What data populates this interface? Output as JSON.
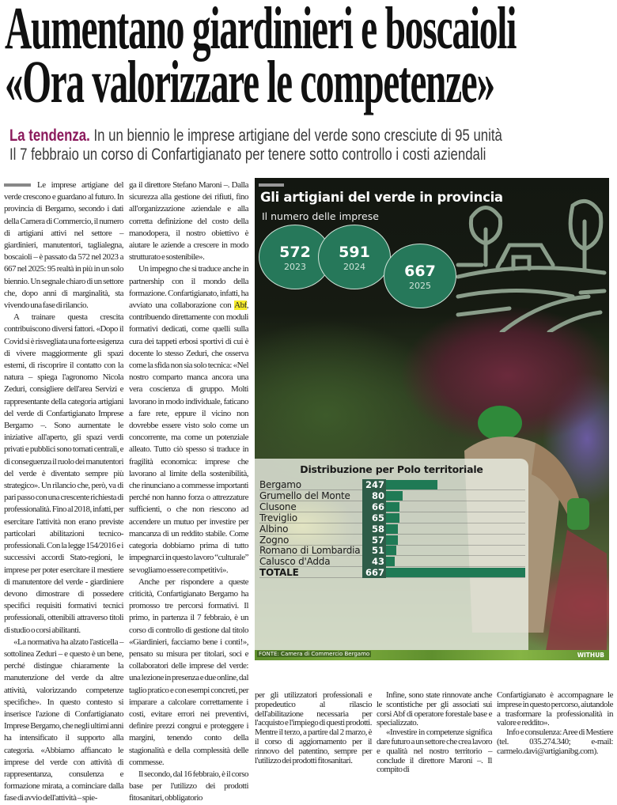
{
  "headline": {
    "line1": "Aumentano giardinieri e boscaioli",
    "line2": "«Ora valorizzare le competenze»"
  },
  "subtitle": {
    "kicker": "La tendenza.",
    "line1": "In un biennio le imprese artigiane del verde sono cresciute di 95 unità",
    "line2": "Il 7 febbraio un corso di Confartigianato per tenere sotto controllo i costi aziendali"
  },
  "columns": [
    {
      "paras": [
        {
          "indent": false,
          "rule": true,
          "parts": [
            {
              "text": "Le imprese artigiane del verde crescono e guardano al futuro. In provincia di Bergamo, secondo i dati della Camera di Commercio, il numero di artigiani attivi nel settore – giardinieri, manutentori, taglialegna, boscaioli – è passato da 572 nel 2023 a 667 nel 2025: 95 realtà in più in un solo biennio. Un segnale chiaro di un settore che, dopo anni di marginalità, sta vivendo una fase di rilancio."
            }
          ]
        },
        {
          "indent": true,
          "parts": [
            {
              "text": "A trainare questa crescita contribuiscono diversi fattori. «Dopo il Covid si è risvegliata una forte esigenza di vivere maggiormente gli spazi esterni, di riscoprire il contatto con la natura – spiega l'agronomo Nicola Zeduri, consigliere dell'area Servizi e rappresentante della categoria artigiani del verde di Confartigianato Imprese Bergamo –. Sono aumentate le iniziative all'aperto, gli spazi verdi privati e pubblici sono tornati centrali, e di conseguenza il ruolo dei manutentori del verde è diventato sempre più strategico». Un rilancio che, però, va di pari passo con una crescente richiesta di professionalità. Fino al 2018, infatti, per esercitare l'attività non erano previste particolari abilitazioni tecnico-professionali. Con la legge 154/2016 e i successivi accordi Stato-regioni, le imprese per poter esercitare il mestiere di manutentore del verde - giardiniere devono dimostrare di possedere specifici requisiti formativi tecnici professionali, ottenibili attraverso titoli di studio o corsi abilitanti."
            }
          ]
        },
        {
          "indent": true,
          "parts": [
            {
              "text": "«La normativa ha alzato l'asticella – sottolinea Zeduri – e questo è un bene, perché distingue chiaramente la manutenzione del verde da altre attività, valorizzando competenze specifiche». In questo contesto si inserisce l'azione di Confartigianato Imprese Bergamo, che negli ultimi anni ha intensificato il supporto alla categoria. «Abbiamo affiancato le imprese del verde con attività di rappresentanza, consulenza e formazione mirata, a cominciare dalla fase di avvio dell'attività – spie-"
            }
          ]
        }
      ]
    },
    {
      "paras": [
        {
          "indent": false,
          "parts": [
            {
              "text": "ga il direttore Stefano Maroni –. Dalla sicurezza alla gestione dei rifiuti, fino all'organizzazione aziendale e alla corretta definizione del costo della manodopera, il nostro obiettivo è aiutare le aziende a crescere in modo strutturato e sostenibile»."
            }
          ]
        },
        {
          "indent": true,
          "parts": [
            {
              "text": "Un impegno che si traduce anche in partnership con il mondo della formazione. Confartigianato, infatti, ha avviato una collaborazione con "
            },
            {
              "text": "Abf",
              "mark": true
            },
            {
              "text": ", contribuendo direttamente con moduli formativi dedicati, come quelli sulla cura dei tappeti erbosi sportivi di cui è docente lo stesso Zeduri, che osserva come la sfida non sia solo tecnica: «Nel nostro comparto manca ancora una vera coscienza di gruppo. Molti lavorano in modo individuale, faticano a fare rete, eppure il vicino non dovrebbe essere visto solo come un concorrente, ma come un potenziale alleato. Tutto ciò spesso si traduce in fragilità economica: imprese che lavorano al limite della sostenibilità, che rinunciano a commesse importanti perché non hanno forza o attrezzature sufficienti, o che non riescono ad accendere un mutuo per investire per mancanza di un reddito stabile. Come categoria dobbiamo prima di tutto impegnarci in questo lavoro “culturale” se vogliamo essere competitivi»."
            }
          ]
        },
        {
          "indent": true,
          "parts": [
            {
              "text": "Anche per rispondere a queste criticità, Confartigianato Bergamo ha promosso tre percorsi formativi. Il primo, in partenza il 7 febbraio, è un corso di controllo di gestione dal titolo «Giardinieri, facciamo bene i conti!», pensato su misura per titolari, soci e collaboratori delle imprese del verde: una lezione in presenza e due online, dal taglio pratico e con esempi concreti, per imparare a calcolare correttamente i costi, evitare errori nei preventivi, definire prezzi congrui e proteggere i margini, tenendo conto della stagionalità e della complessità delle commesse."
            }
          ]
        },
        {
          "indent": true,
          "parts": [
            {
              "text": "Il secondo, dal 16 febbraio, è il corso base per l'utilizzo dei prodotti fitosanitari, obbligatorio"
            }
          ]
        }
      ]
    },
    {
      "paras": [
        {
          "indent": false,
          "parts": [
            {
              "text": "per gli utilizzatori professionali e propedeutico al rilascio dell'abilitazione necessaria per l'acquisto e l'impiego di questi prodotti. Mentre il terzo, a partire dal 2 marzo, è il corso di aggiornamento per il rinnovo del patentino, sempre per l'utilizzo dei prodotti fitosanitari."
            }
          ]
        }
      ]
    },
    {
      "paras": [
        {
          "indent": true,
          "parts": [
            {
              "text": "Infine, sono state rinnovate anche le scontistiche per gli associati sui corsi Abf di operatore forestale base e specializzato."
            }
          ]
        },
        {
          "indent": true,
          "parts": [
            {
              "text": "«Investire in competenze significa dare futuro a un settore che crea lavoro e qualità nel nostro territorio – conclude il direttore Maroni –. Il compito di"
            }
          ]
        }
      ]
    },
    {
      "paras": [
        {
          "indent": false,
          "parts": [
            {
              "text": "Confartigianato è accompagnare le imprese in questo percorso, aiutandole a trasformare la professionalità in valore e reddito»."
            }
          ]
        },
        {
          "indent": true,
          "parts": [
            {
              "text": "Info e consulenza: Aree di Mestiere (tel. 035.274.340; e-mail: carmelo.davi@artigianibg.com)."
            }
          ]
        }
      ]
    }
  ],
  "infographic": {
    "title": "Gli artigiani del verde in provincia",
    "subtitle": "Il numero delle imprese",
    "source": "FONTE: Camera di Commercio Bergamo",
    "credit": "WITHUB",
    "icon": "countryside-house-trees-icon",
    "colors": {
      "bubble": "#26785a",
      "bar": "#1f7a55",
      "number_box": "#2e5c48",
      "kicker": "#8b1a5c",
      "highlight": "#f7ec2a"
    }
  },
  "chart_data": [
    {
      "type": "bubble",
      "title": "Il numero delle imprese",
      "categories": [
        "2023",
        "2024",
        "2025"
      ],
      "values": [
        572,
        591,
        667
      ]
    },
    {
      "type": "bar",
      "orientation": "horizontal",
      "title": "Distribuzione per Polo territoriale",
      "categories": [
        "Bergamo",
        "Grumello del Monte",
        "Clusone",
        "Treviglio",
        "Albino",
        "Zogno",
        "Romano di Lombardia",
        "Calusco d'Adda",
        "TOTALE"
      ],
      "values": [
        247,
        80,
        66,
        65,
        58,
        57,
        51,
        43,
        667
      ],
      "xlim": [
        0,
        667
      ],
      "grid": false
    }
  ]
}
